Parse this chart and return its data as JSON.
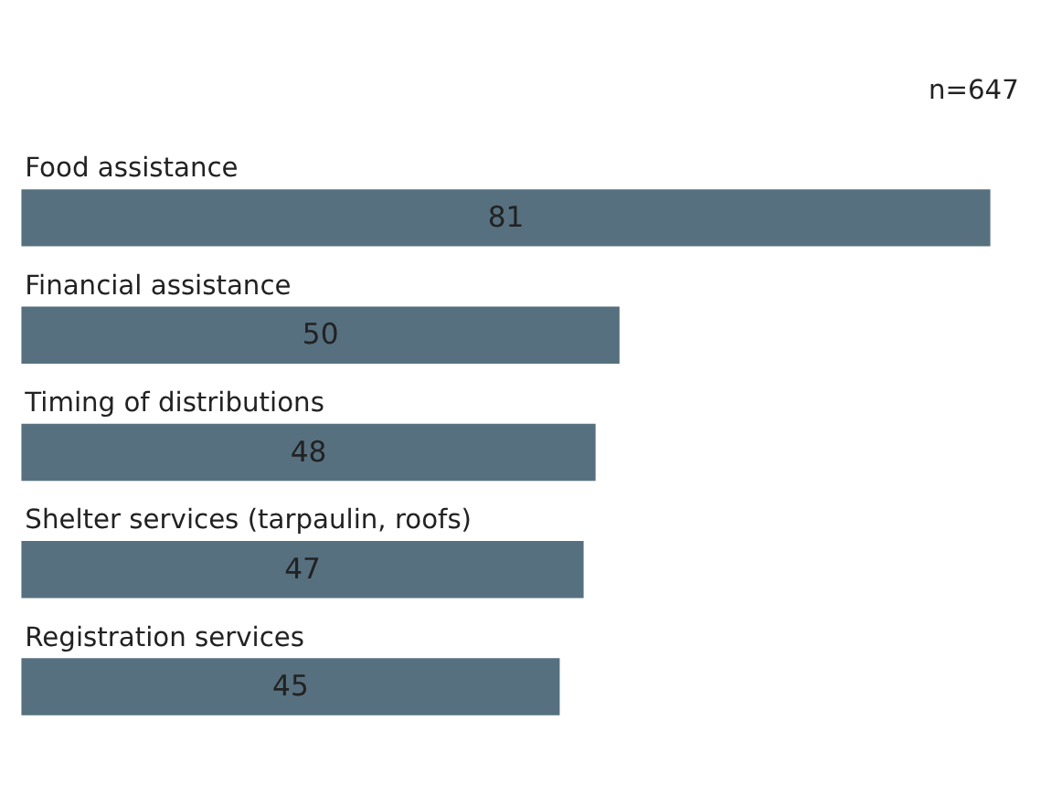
{
  "chart_data": {
    "type": "bar",
    "orientation": "horizontal",
    "categories": [
      "Food assistance",
      "Financial assistance",
      "Timing of distributions",
      "Shelter services (tarpaulin, roofs)",
      "Registration services"
    ],
    "values": [
      81,
      50,
      48,
      47,
      45
    ],
    "color": "#56707f",
    "data_labels": true,
    "annotations": [
      "n=647"
    ]
  }
}
